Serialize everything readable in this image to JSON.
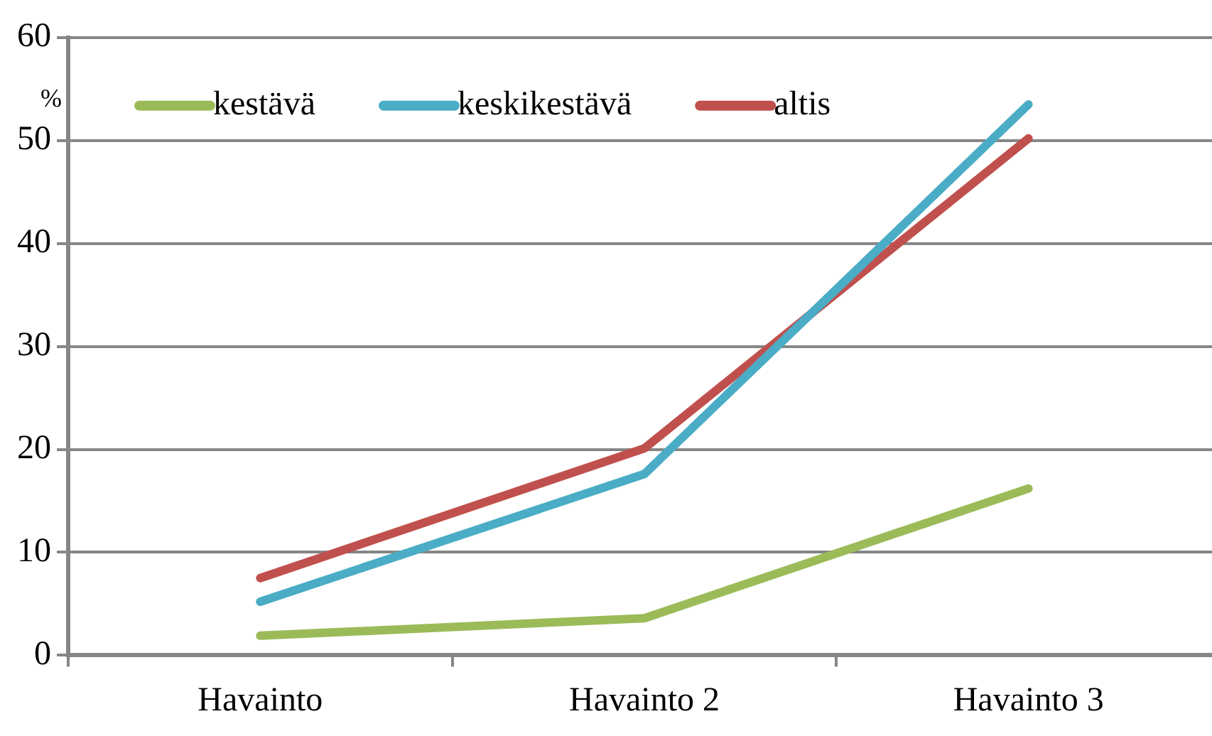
{
  "chart_data": {
    "type": "line",
    "ylabel": "%",
    "categories": [
      "Havainto",
      "Havainto 2",
      "Havainto 3"
    ],
    "series": [
      {
        "name": "kestävä",
        "color": "#9bbb59",
        "values": [
          1.9,
          3.6,
          16.2
        ]
      },
      {
        "name": "keskikestävä",
        "color": "#4bacc6",
        "values": [
          5.2,
          17.6,
          53.5
        ]
      },
      {
        "name": "altis",
        "color": "#c0504d",
        "values": [
          7.5,
          20.1,
          50.2
        ]
      }
    ],
    "ylim": [
      0,
      60
    ],
    "yticks": [
      0,
      10,
      20,
      30,
      40,
      50,
      60
    ],
    "grid": "y",
    "legend": "top left",
    "marker": "none",
    "line_style": "solid"
  }
}
